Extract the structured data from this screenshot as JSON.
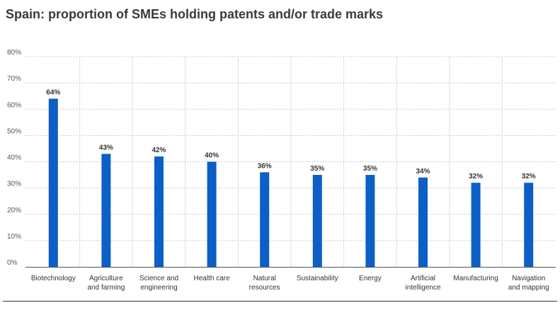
{
  "title": "Spain: proportion of SMEs holding patents and/or trade marks",
  "colors": {
    "bar": "#0b5fc6",
    "gridline": "#c8c8c8",
    "separator": "#e2e2e2",
    "baseline": "#555555",
    "text": "#333333"
  },
  "chart_data": {
    "type": "bar",
    "title": "Spain: proportion of SMEs holding patents and/or trade marks",
    "xlabel": "",
    "ylabel": "",
    "ylim": [
      0,
      80
    ],
    "ytick_values": [
      0,
      10,
      20,
      30,
      40,
      50,
      60,
      70,
      80
    ],
    "ytick_labels": [
      "0%",
      "10%",
      "20%",
      "30%",
      "40%",
      "50%",
      "60%",
      "70%",
      "80%"
    ],
    "grid": true,
    "legend": "none",
    "categories": [
      [
        "Biotechnology"
      ],
      [
        "Agriculture",
        "and farming"
      ],
      [
        "Science and",
        "engineering"
      ],
      [
        "Health care"
      ],
      [
        "Natural",
        "resources"
      ],
      [
        "Sustainability"
      ],
      [
        "Energy"
      ],
      [
        "Artificial",
        "intelligence"
      ],
      [
        "Manufacturing"
      ],
      [
        "Navigation",
        "and mapping"
      ]
    ],
    "values": [
      64,
      43,
      42,
      40,
      36,
      35,
      35,
      34,
      32,
      32
    ],
    "value_labels": [
      "64%",
      "43%",
      "42%",
      "40%",
      "36%",
      "35%",
      "35%",
      "34%",
      "32%",
      "32%"
    ]
  }
}
